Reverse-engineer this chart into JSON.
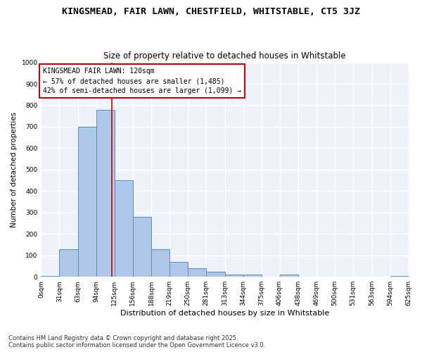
{
  "title": "KINGSMEAD, FAIR LAWN, CHESTFIELD, WHITSTABLE, CT5 3JZ",
  "subtitle": "Size of property relative to detached houses in Whitstable",
  "xlabel": "Distribution of detached houses by size in Whitstable",
  "ylabel": "Number of detached properties",
  "bar_values": [
    5,
    130,
    700,
    780,
    450,
    280,
    130,
    70,
    40,
    25,
    10,
    10,
    0,
    10,
    0,
    0,
    0,
    0,
    0,
    5
  ],
  "bin_edges": [
    0,
    31,
    63,
    94,
    125,
    156,
    188,
    219,
    250,
    281,
    313,
    344,
    375,
    406,
    438,
    469,
    500,
    531,
    563,
    594,
    625
  ],
  "tick_labels": [
    "0sqm",
    "31sqm",
    "63sqm",
    "94sqm",
    "125sqm",
    "156sqm",
    "188sqm",
    "219sqm",
    "250sqm",
    "281sqm",
    "313sqm",
    "344sqm",
    "375sqm",
    "406sqm",
    "438sqm",
    "469sqm",
    "500sqm",
    "531sqm",
    "563sqm",
    "594sqm",
    "625sqm"
  ],
  "bar_color": "#aec6e8",
  "bar_edge_color": "#5b8ec4",
  "vline_x": 120,
  "vline_color": "#cc0000",
  "annotation_text": "KINGSMEAD FAIR LAWN: 120sqm\n← 57% of detached houses are smaller (1,485)\n42% of semi-detached houses are larger (1,099) →",
  "annotation_box_color": "#cc0000",
  "ylim": [
    0,
    1000
  ],
  "yticks": [
    0,
    100,
    200,
    300,
    400,
    500,
    600,
    700,
    800,
    900,
    1000
  ],
  "bg_color": "#eef2fb",
  "grid_color": "#ffffff",
  "fig_bg_color": "#ffffff",
  "footnote": "Contains HM Land Registry data © Crown copyright and database right 2025.\nContains public sector information licensed under the Open Government Licence v3.0.",
  "title_fontsize": 9.5,
  "subtitle_fontsize": 8.5,
  "xlabel_fontsize": 8,
  "ylabel_fontsize": 7.5,
  "tick_fontsize": 6.5,
  "annotation_fontsize": 7,
  "footnote_fontsize": 6
}
